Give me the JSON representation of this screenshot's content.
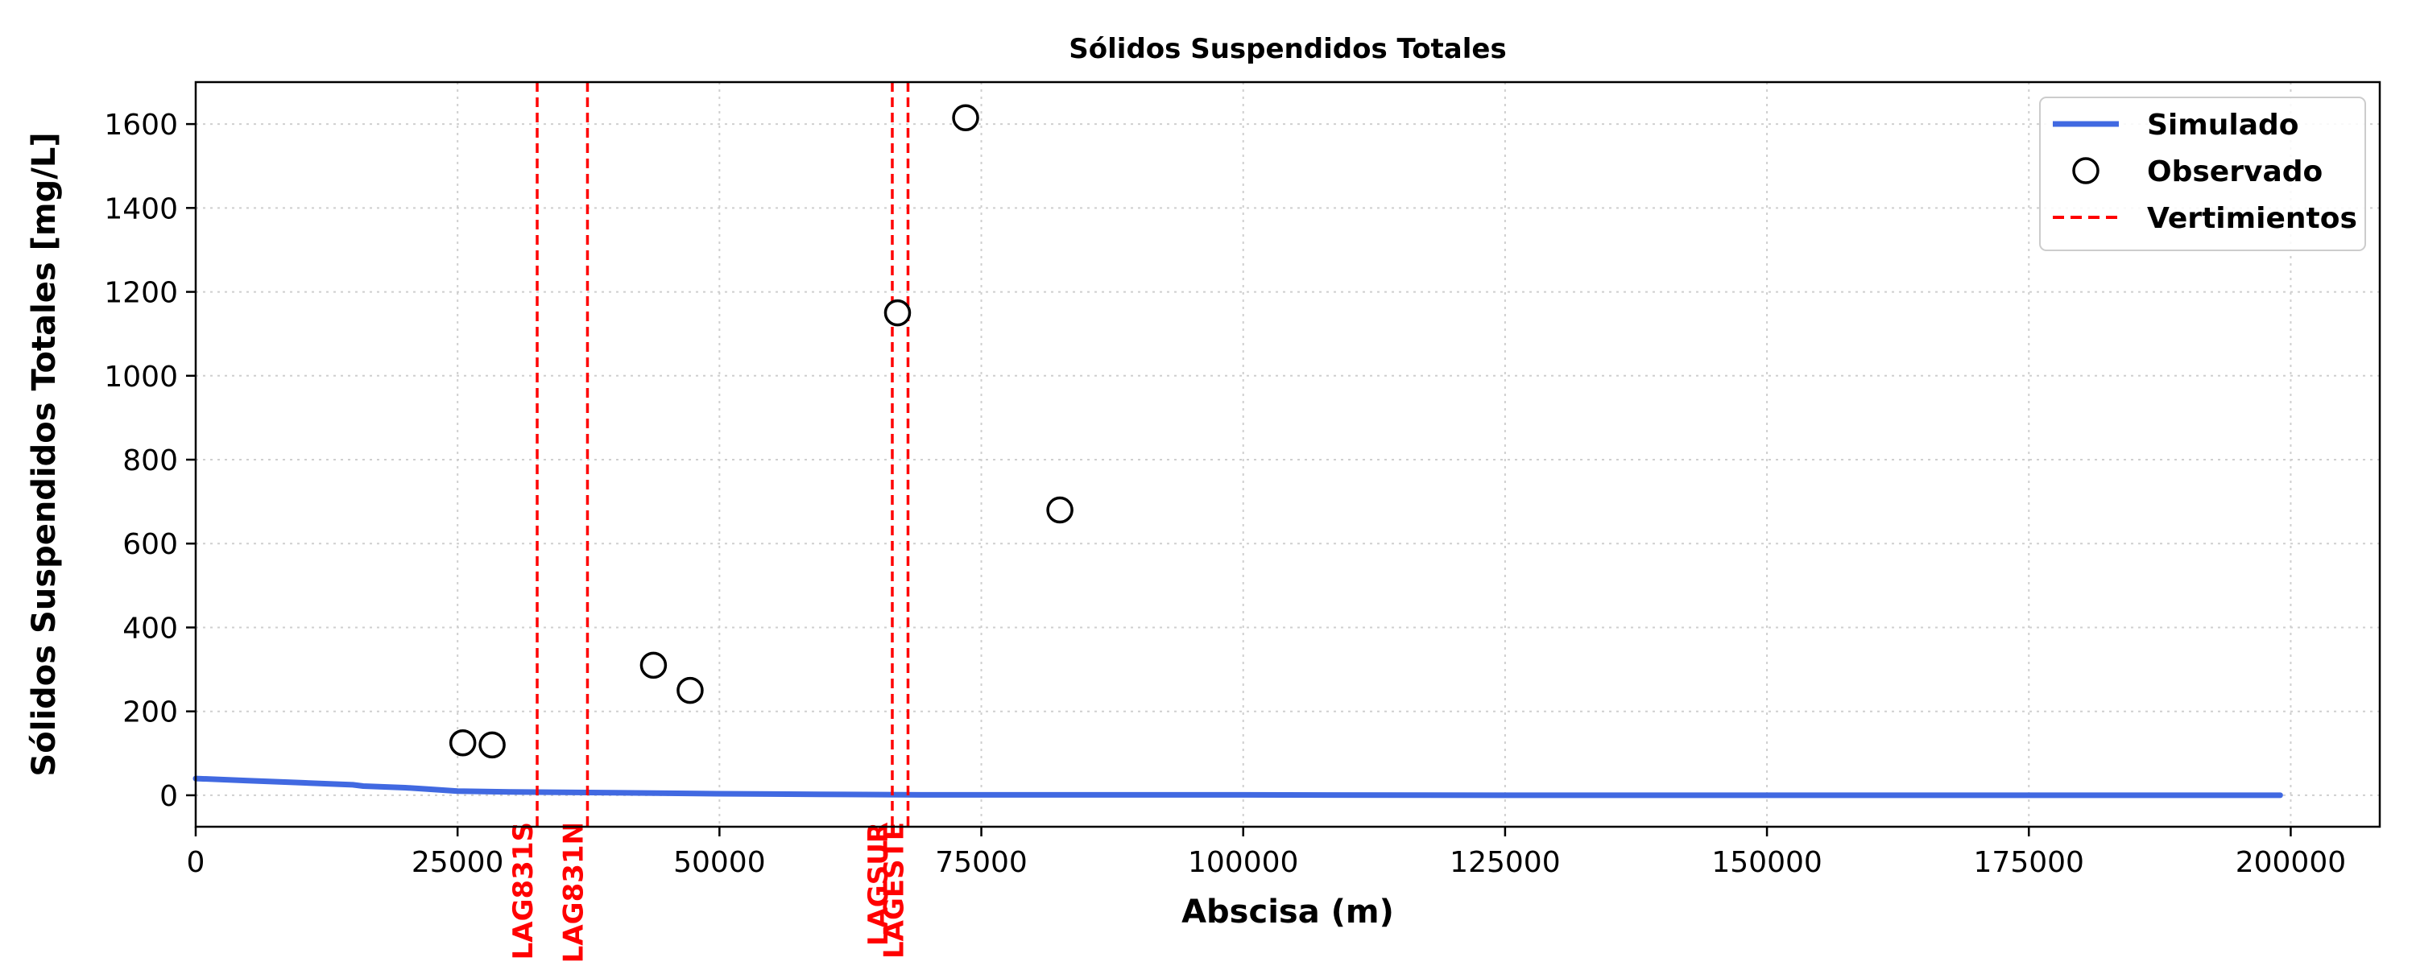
{
  "chart_data": {
    "type": "line",
    "title": "Sólidos Suspendidos Totales",
    "xlabel": "Abscisa (m)",
    "ylabel": "Sólidos Suspendidos Totales [mg/L]",
    "xlim": [
      0,
      208500
    ],
    "ylim": [
      -75,
      1700
    ],
    "xticks": [
      0,
      25000,
      50000,
      75000,
      100000,
      125000,
      150000,
      175000,
      200000
    ],
    "xtick_labels": [
      "0",
      "25000",
      "50000",
      "75000",
      "100000",
      "125000",
      "150000",
      "175000",
      "200000"
    ],
    "yticks": [
      0,
      200,
      400,
      600,
      800,
      1000,
      1200,
      1400,
      1600
    ],
    "ytick_labels": [
      "0",
      "200",
      "400",
      "600",
      "800",
      "1000",
      "1200",
      "1400",
      "1600"
    ],
    "grid": true,
    "legend_position": "top-right",
    "series": [
      {
        "name": "Simulado",
        "kind": "line",
        "color": "#4169e1",
        "x": [
          0,
          5000,
          10000,
          15000,
          16000,
          20000,
          22000,
          25000,
          30000,
          40000,
          48000,
          55000,
          62000,
          70000,
          80000,
          100000,
          125000,
          150000,
          175000,
          199000
        ],
        "y": [
          40,
          35,
          30,
          25,
          22,
          18,
          15,
          10,
          8,
          6,
          4,
          3,
          2,
          1,
          1,
          1,
          0,
          0,
          0,
          0
        ]
      },
      {
        "name": "Observado",
        "kind": "scatter",
        "color": "#000000",
        "x": [
          25500,
          28300,
          43700,
          47200,
          67000,
          73500,
          82500
        ],
        "y": [
          125,
          120,
          310,
          250,
          1150,
          1615,
          680
        ]
      },
      {
        "name": "Vertimientos",
        "kind": "vlines",
        "color": "#ff0000",
        "x": [
          32600,
          37400,
          66500,
          68000
        ],
        "labels": [
          "LAG831S",
          "LAG831N",
          "LAGSUR",
          "LAGESTE"
        ]
      }
    ]
  }
}
